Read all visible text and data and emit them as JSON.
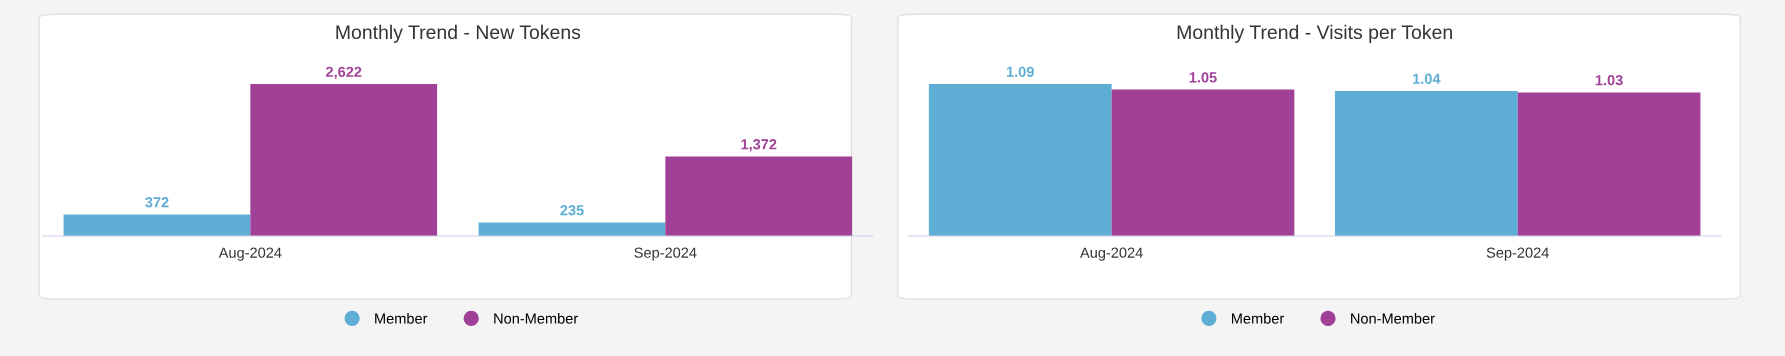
{
  "chart_data": [
    {
      "type": "bar",
      "title": "Monthly Trend - New Tokens",
      "categories": [
        "Aug-2024",
        "Sep-2024"
      ],
      "series": [
        {
          "name": "Member",
          "color": "#5eadd4",
          "values": [
            372,
            235
          ],
          "value_labels": [
            "372",
            "235"
          ]
        },
        {
          "name": "Non-Member",
          "color": "#a04097",
          "values": [
            2622,
            1372
          ],
          "value_labels": [
            "2,622",
            "1,372"
          ]
        }
      ],
      "legend": "bottom",
      "marker": "circle",
      "grid": false,
      "tick_labels": "x"
    },
    {
      "type": "bar",
      "title": "Monthly Trend - Visits per Token",
      "categories": [
        "Aug-2024",
        "Sep-2024"
      ],
      "series": [
        {
          "name": "Member",
          "color": "#5eadd4",
          "values": [
            1.09,
            1.04
          ],
          "value_labels": [
            "1.09",
            "1.04"
          ]
        },
        {
          "name": "Non-Member",
          "color": "#a04097",
          "values": [
            1.05,
            1.03
          ],
          "value_labels": [
            "1.05",
            "1.03"
          ]
        }
      ],
      "legend": "bottom",
      "marker": "circle",
      "grid": false,
      "tick_labels": "x"
    }
  ]
}
